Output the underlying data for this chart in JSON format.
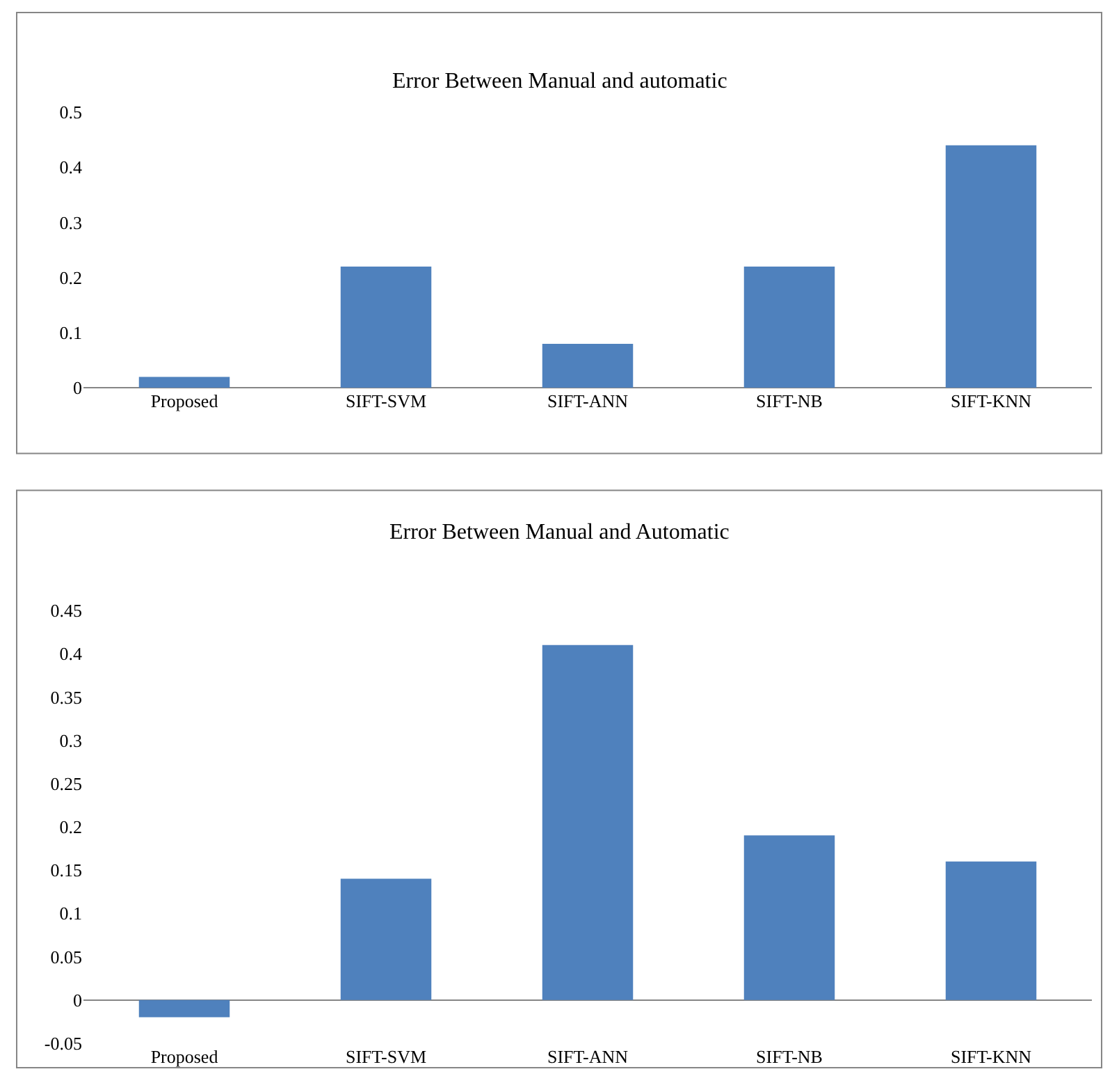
{
  "chart_data": [
    {
      "type": "bar",
      "title": "Error Between Manual and automatic",
      "categories": [
        "Proposed",
        "SIFT-SVM",
        "SIFT-ANN",
        "SIFT-NB",
        "SIFT-KNN"
      ],
      "values": [
        0.02,
        0.22,
        0.08,
        0.22,
        0.44
      ],
      "color": "#4f81bd",
      "ylim": [
        0,
        0.5
      ],
      "yticks": [
        0,
        0.1,
        0.2,
        0.3,
        0.4,
        0.5
      ]
    },
    {
      "type": "bar",
      "title": "Error Between Manual and Automatic",
      "categories": [
        "Proposed",
        "SIFT-SVM",
        "SIFT-ANN",
        "SIFT-NB",
        "SIFT-KNN"
      ],
      "values": [
        -0.02,
        0.14,
        0.41,
        0.19,
        0.16
      ],
      "color": "#4f81bd",
      "ylim": [
        -0.05,
        0.45
      ],
      "yticks": [
        -0.05,
        0,
        0.05,
        0.1,
        0.15,
        0.2,
        0.25,
        0.3,
        0.35,
        0.4,
        0.45
      ]
    }
  ]
}
